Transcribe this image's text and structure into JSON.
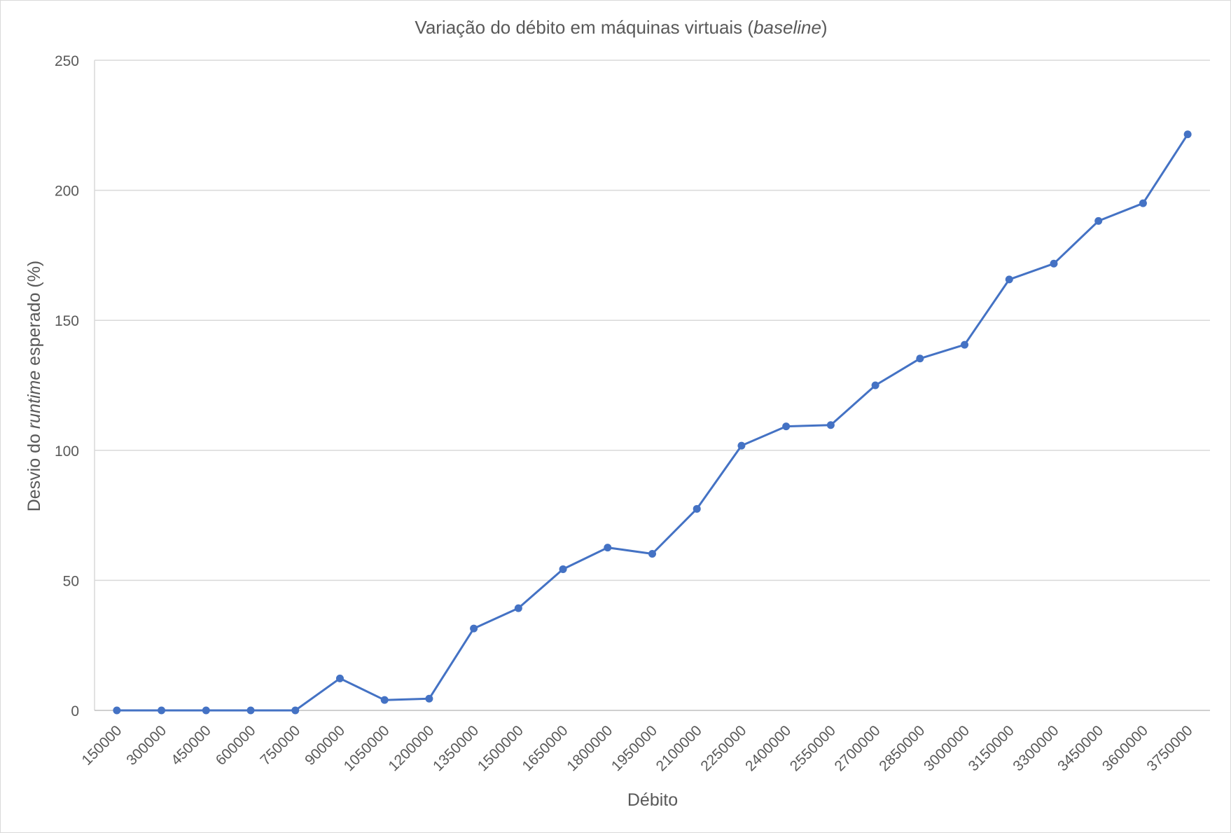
{
  "chart_data": {
    "type": "line",
    "title": {
      "before": "Variação do débito em máquinas virtuais (",
      "italic": "baseline",
      "after": ")"
    },
    "xlabel": "Débito",
    "ylabel": {
      "before": "Desvio do ",
      "italic": "runtime",
      "after": " esperado  (%)"
    },
    "categories": [
      "150000",
      "300000",
      "450000",
      "600000",
      "750000",
      "900000",
      "1050000",
      "1200000",
      "1350000",
      "1500000",
      "1650000",
      "1800000",
      "1950000",
      "2100000",
      "2250000",
      "2400000",
      "2550000",
      "2700000",
      "2850000",
      "3000000",
      "3150000",
      "3300000",
      "3450000",
      "3600000",
      "3750000"
    ],
    "series": [
      {
        "values": [
          0,
          0,
          0,
          0,
          0,
          12.3,
          4,
          4.5,
          31.5,
          39.3,
          54.3,
          62.6,
          60.2,
          77.5,
          101.8,
          109.2,
          109.7,
          125,
          135.3,
          140.6,
          165.7,
          171.8,
          188.2,
          195,
          221.5
        ],
        "color": "#4472c4"
      }
    ],
    "ylim": [
      0,
      250
    ],
    "yticks": [
      0,
      50,
      100,
      150,
      200,
      250
    ],
    "grid": true,
    "gridline_color": "#d9d9d9",
    "legend": "none"
  }
}
